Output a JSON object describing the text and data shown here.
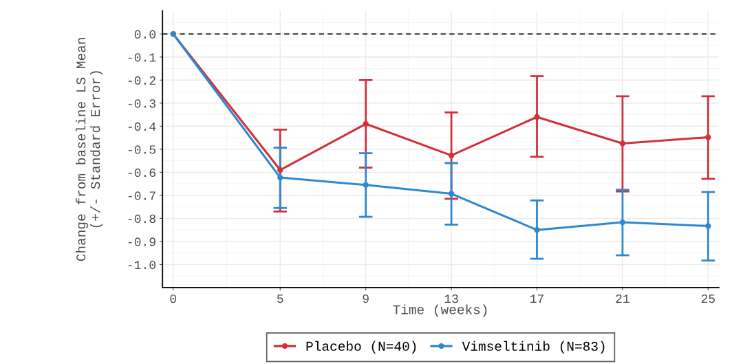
{
  "chart_data": {
    "type": "line",
    "xlabel": "Time (weeks)",
    "ylabel": "Change from baseline LS Mean\n(+/- Standard Error)",
    "x": [
      0,
      5,
      9,
      13,
      17,
      21,
      25
    ],
    "xlim": [
      -0.5,
      25.5
    ],
    "xticks": [
      0,
      5,
      9,
      13,
      17,
      21,
      25
    ],
    "ylim": [
      -1.1,
      0.1
    ],
    "yticks": [
      {
        "value": 0.0,
        "label": "0.0"
      },
      {
        "value": -0.1,
        "label": "-0.1"
      },
      {
        "value": -0.2,
        "label": "-0.2"
      },
      {
        "value": -0.3,
        "label": "-0.3"
      },
      {
        "value": -0.4,
        "label": "-0.4"
      },
      {
        "value": -0.5,
        "label": "-0.5"
      },
      {
        "value": -0.6,
        "label": "-0.6"
      },
      {
        "value": -0.7,
        "label": "-0.7"
      },
      {
        "value": -0.8,
        "label": "-0.8"
      },
      {
        "value": -0.9,
        "label": "-0.9"
      },
      {
        "value": -1.0,
        "label": "-1.0"
      }
    ],
    "series": [
      {
        "name": "Placebo (N=40)",
        "color": "#d1313a",
        "values": [
          0,
          -0.59,
          -0.39,
          -0.527,
          -0.36,
          -0.475,
          -0.448
        ],
        "errors": [
          null,
          [
            -0.77,
            -0.415
          ],
          [
            -0.58,
            -0.2
          ],
          [
            -0.715,
            -0.34
          ],
          [
            -0.533,
            -0.183
          ],
          [
            -0.683,
            -0.27
          ],
          [
            -0.628,
            -0.27
          ]
        ]
      },
      {
        "name": "Vimseltinib (N=83)",
        "color": "#2e88d0",
        "values": [
          0,
          -0.623,
          -0.655,
          -0.693,
          -0.85,
          -0.817,
          -0.833
        ],
        "errors": [
          null,
          [
            -0.755,
            -0.493
          ],
          [
            -0.793,
            -0.517
          ],
          [
            -0.827,
            -0.56
          ],
          [
            -0.975,
            -0.722
          ],
          [
            -0.96,
            -0.676
          ],
          [
            -0.983,
            -0.686
          ]
        ]
      }
    ],
    "ref_lines": [
      {
        "axis": "y",
        "value": 0,
        "color": "#000000",
        "line_style": "dashed"
      }
    ],
    "marker": "circle",
    "line_style": "solid",
    "grid": true,
    "legend": "bottom"
  }
}
